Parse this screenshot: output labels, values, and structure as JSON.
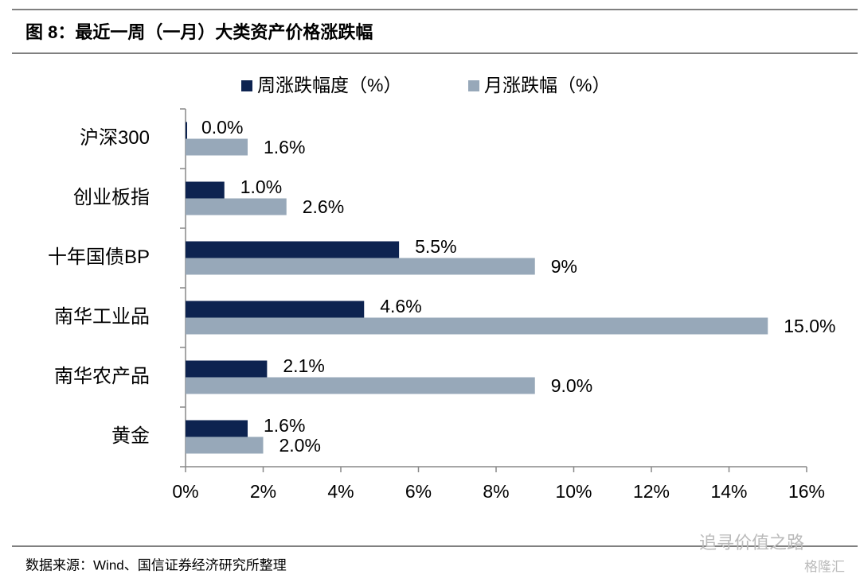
{
  "chart_data": {
    "type": "bar",
    "orientation": "horizontal",
    "title": "图 8：最近一周（一月）大类资产价格涨跌幅",
    "source": "数据来源：Wind、国信证券经济研究所整理",
    "watermark": [
      "追寻价值之路",
      "格隆汇"
    ],
    "categories": [
      "沪深300",
      "创业板指",
      "十年国债BP",
      "南华工业品",
      "南华农产品",
      "黄金"
    ],
    "series": [
      {
        "name": "周涨跌幅度（%）",
        "color": "#0d2350",
        "values": [
          0.0,
          1.0,
          5.5,
          4.6,
          2.1,
          1.6
        ],
        "value_labels": [
          "0.0%",
          "1.0%",
          "5.5%",
          "4.6%",
          "2.1%",
          "1.6%"
        ]
      },
      {
        "name": "月涨跌幅（%）",
        "color": "#97a8b9",
        "values": [
          1.6,
          2.6,
          9,
          15.0,
          9.0,
          2.0
        ],
        "value_labels": [
          "1.6%",
          "2.6%",
          "9%",
          "15.0%",
          "9.0%",
          "2.0%"
        ]
      }
    ],
    "xlim": [
      0,
      16
    ],
    "xticks": [
      {
        "value": 0,
        "label": "0%"
      },
      {
        "value": 2,
        "label": "2%"
      },
      {
        "value": 4,
        "label": "4%"
      },
      {
        "value": 6,
        "label": "6%"
      },
      {
        "value": 8,
        "label": "8%"
      },
      {
        "value": 10,
        "label": "10%"
      },
      {
        "value": 12,
        "label": "12%"
      },
      {
        "value": 14,
        "label": "14%"
      },
      {
        "value": 16,
        "label": "16%"
      }
    ],
    "legend": "top"
  }
}
